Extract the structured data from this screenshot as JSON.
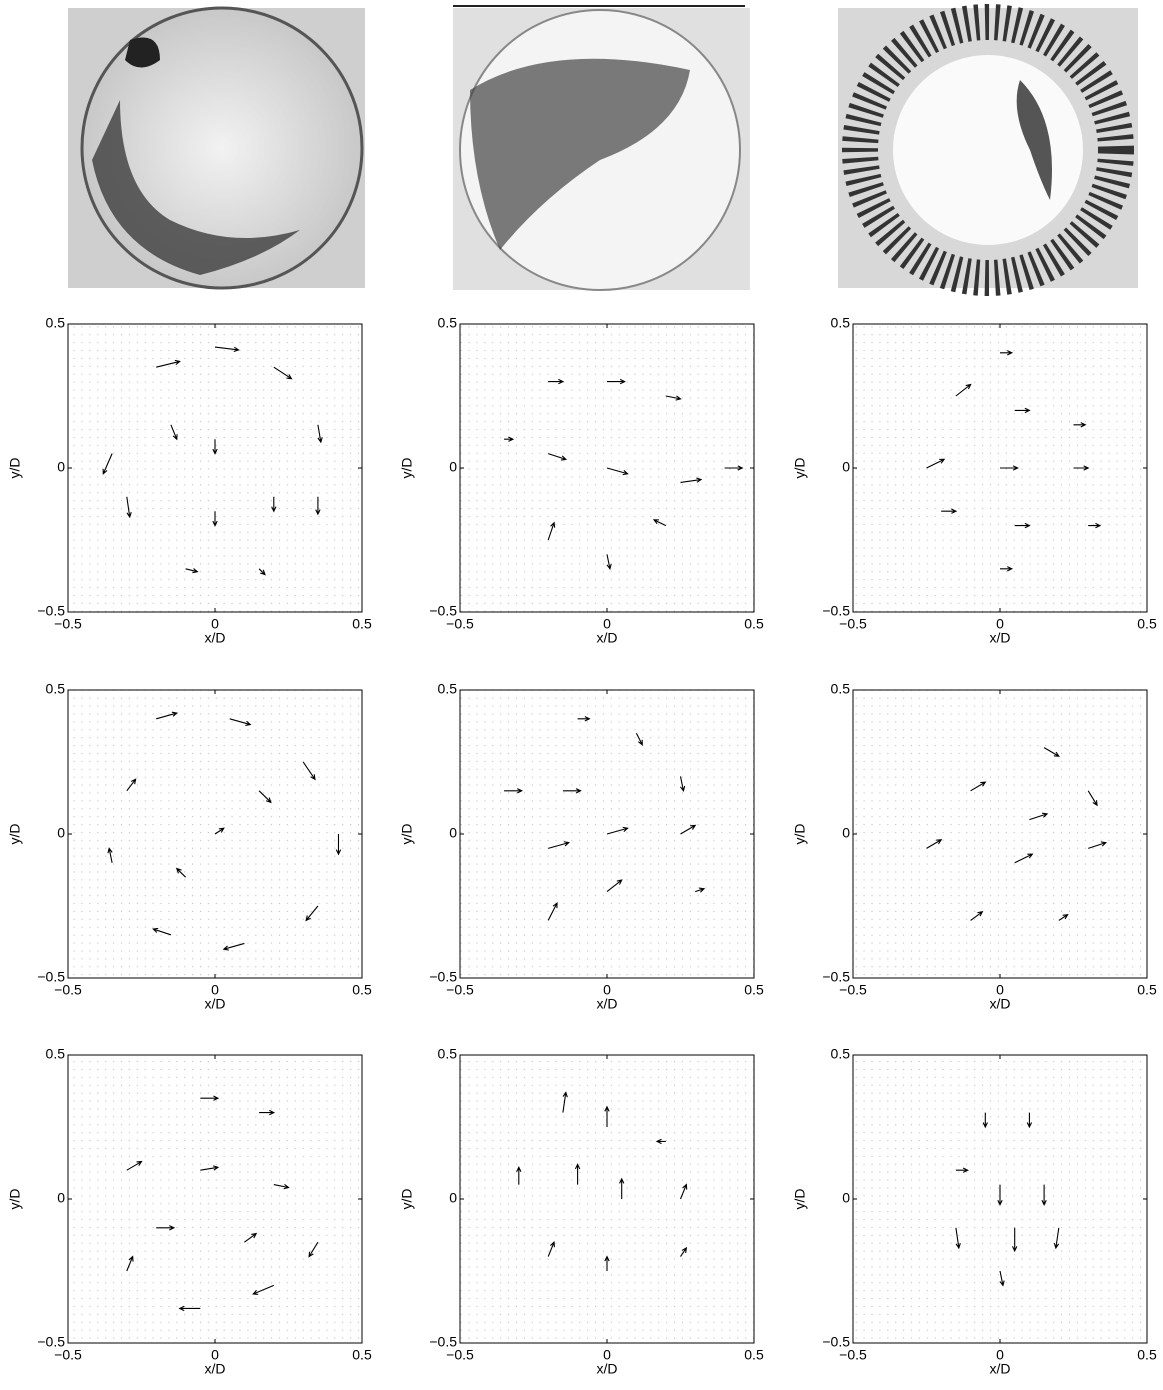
{
  "chart_data": [
    {
      "type": "quiver",
      "xlabel": "x/D",
      "ylabel": "y/D",
      "xlim": [
        -0.5,
        0.5
      ],
      "ylim": [
        -0.5,
        0.5
      ],
      "xticks": [
        {
          "value": -0.5,
          "label": "−0.5"
        },
        0,
        0.5
      ],
      "yticks": [
        {
          "value": -0.5,
          "label": "−0.5"
        },
        0,
        0.5
      ],
      "vectors": [
        [
          -0.2,
          0.35,
          0.08,
          0.02
        ],
        [
          0,
          0.42,
          0.08,
          -0.01
        ],
        [
          0.2,
          0.35,
          0.06,
          -0.04
        ],
        [
          0.35,
          0.15,
          0.01,
          -0.06
        ],
        [
          0.35,
          -0.1,
          0,
          -0.06
        ],
        [
          0,
          0.1,
          0,
          -0.05
        ],
        [
          0,
          -0.15,
          0,
          -0.05
        ],
        [
          0.2,
          -0.1,
          0,
          -0.05
        ],
        [
          -0.35,
          0.05,
          -0.03,
          -0.07
        ],
        [
          -0.3,
          -0.1,
          0.01,
          -0.07
        ],
        [
          -0.1,
          -0.35,
          0.04,
          -0.01
        ],
        [
          0.15,
          -0.35,
          0.02,
          -0.02
        ],
        [
          -0.15,
          0.15,
          0.02,
          -0.05
        ]
      ]
    },
    {
      "type": "quiver",
      "xlabel": "x/D",
      "ylabel": "y/D",
      "xlim": [
        -0.5,
        0.5
      ],
      "ylim": [
        -0.5,
        0.5
      ],
      "xticks": [
        {
          "value": -0.5,
          "label": "−0.5"
        },
        0,
        0.5
      ],
      "yticks": [
        {
          "value": -0.5,
          "label": "−0.5"
        },
        0,
        0.5
      ],
      "vectors": [
        [
          -0.2,
          0.3,
          0.05,
          0
        ],
        [
          0,
          0.3,
          0.06,
          0
        ],
        [
          0.2,
          0.25,
          0.05,
          -0.01
        ],
        [
          -0.2,
          0.05,
          0.06,
          -0.02
        ],
        [
          0,
          0,
          0.07,
          -0.02
        ],
        [
          0.25,
          -0.05,
          0.07,
          0.01
        ],
        [
          0.4,
          0,
          0.06,
          0
        ],
        [
          -0.2,
          -0.25,
          0.02,
          0.06
        ],
        [
          0,
          -0.3,
          0.01,
          -0.05
        ],
        [
          0.2,
          -0.2,
          -0.04,
          0.02
        ],
        [
          -0.35,
          0.1,
          0.03,
          0
        ]
      ]
    },
    {
      "type": "quiver",
      "xlabel": "x/D",
      "ylabel": "y/D",
      "xlim": [
        -0.5,
        0.5
      ],
      "ylim": [
        -0.5,
        0.5
      ],
      "xticks": [
        {
          "value": -0.5,
          "label": "−0.5"
        },
        0,
        0.5
      ],
      "yticks": [
        {
          "value": -0.5,
          "label": "−0.5"
        },
        0,
        0.5
      ],
      "vectors": [
        [
          -0.15,
          0.25,
          0.05,
          0.04
        ],
        [
          0.05,
          0.2,
          0.05,
          0
        ],
        [
          0.25,
          0.15,
          0.04,
          0
        ],
        [
          -0.25,
          0,
          0.06,
          0.03
        ],
        [
          0,
          0,
          0.06,
          0
        ],
        [
          0.25,
          0,
          0.05,
          0
        ],
        [
          -0.2,
          -0.15,
          0.05,
          0
        ],
        [
          0.05,
          -0.2,
          0.05,
          0
        ],
        [
          0.3,
          -0.2,
          0.04,
          0
        ],
        [
          0,
          -0.35,
          0.04,
          0
        ],
        [
          0,
          0.4,
          0.04,
          0
        ]
      ]
    },
    {
      "type": "quiver",
      "xlabel": "x/D",
      "ylabel": "y/D",
      "xlim": [
        -0.5,
        0.5
      ],
      "ylim": [
        -0.5,
        0.5
      ],
      "xticks": [
        {
          "value": -0.5,
          "label": "−0.5"
        },
        0,
        0.5
      ],
      "yticks": [
        {
          "value": -0.5,
          "label": "−0.5"
        },
        0,
        0.5
      ],
      "vectors": [
        [
          -0.2,
          0.4,
          0.07,
          0.02
        ],
        [
          0.05,
          0.4,
          0.07,
          -0.02
        ],
        [
          0.3,
          0.25,
          0.04,
          -0.06
        ],
        [
          0.42,
          0,
          0,
          -0.07
        ],
        [
          0.35,
          -0.25,
          -0.04,
          -0.05
        ],
        [
          0.1,
          -0.38,
          -0.07,
          -0.02
        ],
        [
          -0.15,
          -0.35,
          -0.06,
          0.02
        ],
        [
          -0.35,
          -0.1,
          -0.01,
          0.05
        ],
        [
          -0.3,
          0.15,
          0.03,
          0.04
        ],
        [
          0,
          0,
          0.03,
          0.02
        ],
        [
          0.15,
          0.15,
          0.04,
          -0.04
        ],
        [
          -0.1,
          -0.15,
          -0.03,
          0.03
        ]
      ]
    },
    {
      "type": "quiver",
      "xlabel": "x/D",
      "ylabel": "y/D",
      "xlim": [
        -0.5,
        0.5
      ],
      "ylim": [
        -0.5,
        0.5
      ],
      "xticks": [
        {
          "value": -0.5,
          "label": "−0.5"
        },
        0,
        0.5
      ],
      "yticks": [
        {
          "value": -0.5,
          "label": "−0.5"
        },
        0,
        0.5
      ],
      "vectors": [
        [
          -0.1,
          0.4,
          0.04,
          0
        ],
        [
          0.1,
          0.35,
          0.02,
          -0.04
        ],
        [
          -0.35,
          0.15,
          0.06,
          0
        ],
        [
          -0.15,
          0.15,
          0.06,
          0
        ],
        [
          0.25,
          0.2,
          0.01,
          -0.05
        ],
        [
          -0.2,
          -0.05,
          0.07,
          0.02
        ],
        [
          0,
          0,
          0.07,
          0.02
        ],
        [
          0.25,
          0,
          0.05,
          0.03
        ],
        [
          -0.2,
          -0.3,
          0.03,
          0.06
        ],
        [
          0,
          -0.2,
          0.05,
          0.04
        ],
        [
          0.3,
          -0.2,
          0.03,
          0.01
        ]
      ]
    },
    {
      "type": "quiver",
      "xlabel": "x/D",
      "ylabel": "y/D",
      "xlim": [
        -0.5,
        0.5
      ],
      "ylim": [
        -0.5,
        0.5
      ],
      "xticks": [
        {
          "value": -0.5,
          "label": "−0.5"
        },
        0,
        0.5
      ],
      "yticks": [
        {
          "value": -0.5,
          "label": "−0.5"
        },
        0,
        0.5
      ],
      "vectors": [
        [
          0.15,
          0.3,
          0.05,
          -0.03
        ],
        [
          0.3,
          0.15,
          0.03,
          -0.05
        ],
        [
          -0.1,
          0.15,
          0.05,
          0.03
        ],
        [
          0.1,
          0.05,
          0.06,
          0.02
        ],
        [
          -0.25,
          -0.05,
          0.05,
          0.03
        ],
        [
          0.05,
          -0.1,
          0.06,
          0.03
        ],
        [
          0.3,
          -0.05,
          0.06,
          0.02
        ],
        [
          -0.1,
          -0.3,
          0.04,
          0.03
        ],
        [
          0.2,
          -0.3,
          0.03,
          0.02
        ]
      ]
    },
    {
      "type": "quiver",
      "xlabel": "x/D",
      "ylabel": "y/D",
      "xlim": [
        -0.5,
        0.5
      ],
      "ylim": [
        -0.5,
        0.5
      ],
      "xticks": [
        {
          "value": -0.5,
          "label": "−0.5"
        },
        0,
        0.5
      ],
      "yticks": [
        {
          "value": -0.5,
          "label": "−0.5"
        },
        0,
        0.5
      ],
      "vectors": [
        [
          -0.05,
          0.35,
          0.06,
          0
        ],
        [
          0.15,
          0.3,
          0.05,
          0
        ],
        [
          -0.3,
          0.1,
          0.05,
          0.03
        ],
        [
          -0.05,
          0.1,
          0.06,
          0.01
        ],
        [
          0.2,
          0.05,
          0.05,
          -0.01
        ],
        [
          -0.2,
          -0.1,
          0.06,
          0
        ],
        [
          0.1,
          -0.15,
          0.04,
          0.03
        ],
        [
          0.35,
          -0.15,
          -0.03,
          -0.05
        ],
        [
          0.2,
          -0.3,
          -0.07,
          -0.03
        ],
        [
          -0.05,
          -0.38,
          -0.07,
          0
        ],
        [
          -0.3,
          -0.25,
          0.02,
          0.05
        ]
      ]
    },
    {
      "type": "quiver",
      "xlabel": "x/D",
      "ylabel": "y/D",
      "xlim": [
        -0.5,
        0.5
      ],
      "ylim": [
        -0.5,
        0.5
      ],
      "xticks": [
        {
          "value": -0.5,
          "label": "−0.5"
        },
        0,
        0.5
      ],
      "yticks": [
        {
          "value": -0.5,
          "label": "−0.5"
        },
        0,
        0.5
      ],
      "vectors": [
        [
          -0.15,
          0.3,
          0.01,
          0.07
        ],
        [
          0,
          0.25,
          0,
          0.07
        ],
        [
          0.2,
          0.2,
          -0.03,
          0
        ],
        [
          -0.3,
          0.05,
          0,
          0.06
        ],
        [
          -0.1,
          0.05,
          0,
          0.07
        ],
        [
          0.05,
          0,
          0,
          0.07
        ],
        [
          0.25,
          0,
          0.02,
          0.05
        ],
        [
          -0.2,
          -0.2,
          0.02,
          0.05
        ],
        [
          0,
          -0.25,
          0,
          0.05
        ],
        [
          0.25,
          -0.2,
          0.02,
          0.03
        ]
      ]
    },
    {
      "type": "quiver",
      "xlabel": "x/D",
      "ylabel": "y/D",
      "xlim": [
        -0.5,
        0.5
      ],
      "ylim": [
        -0.5,
        0.5
      ],
      "xticks": [
        {
          "value": -0.5,
          "label": "−0.5"
        },
        0,
        0.5
      ],
      "yticks": [
        {
          "value": -0.5,
          "label": "−0.5"
        },
        0,
        0.5
      ],
      "vectors": [
        [
          -0.05,
          0.3,
          0,
          -0.05
        ],
        [
          0.1,
          0.3,
          0,
          -0.05
        ],
        [
          -0.15,
          0.1,
          0.04,
          0
        ],
        [
          0,
          0.05,
          0,
          -0.07
        ],
        [
          0.15,
          0.05,
          0,
          -0.07
        ],
        [
          -0.15,
          -0.1,
          0.01,
          -0.07
        ],
        [
          0.05,
          -0.1,
          0,
          -0.08
        ],
        [
          0.2,
          -0.1,
          -0.01,
          -0.07
        ],
        [
          0,
          -0.25,
          0.01,
          -0.05
        ]
      ]
    }
  ]
}
